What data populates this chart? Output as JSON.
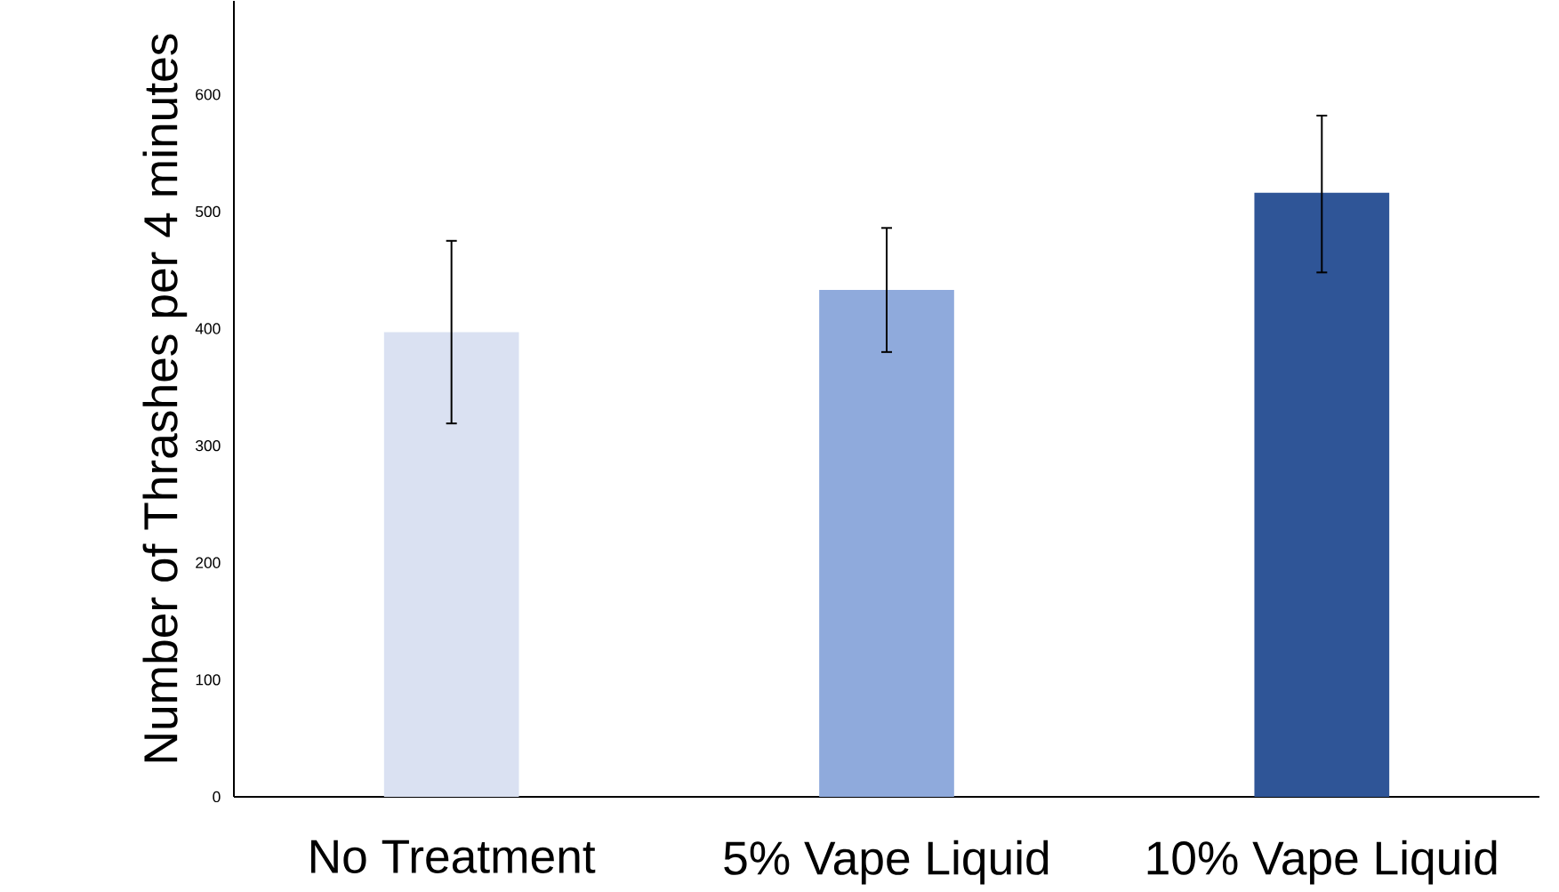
{
  "chart_data": {
    "type": "bar",
    "ylabel": "Number of Thrashes per 4 minutes",
    "categories": [
      "No Treatment",
      "5% Vape Liquid",
      "10% Vape Liquid"
    ],
    "values": [
      397,
      433,
      516
    ],
    "colors": [
      "#dae1f2",
      "#8faadc",
      "#2f5597"
    ],
    "errors": [
      [
        319,
        475
      ],
      [
        380,
        486
      ],
      [
        448,
        582
      ]
    ],
    "ylim": [
      0,
      680
    ],
    "yticks": [
      0,
      100,
      200,
      300,
      400,
      500,
      600
    ],
    "grid": false
  }
}
